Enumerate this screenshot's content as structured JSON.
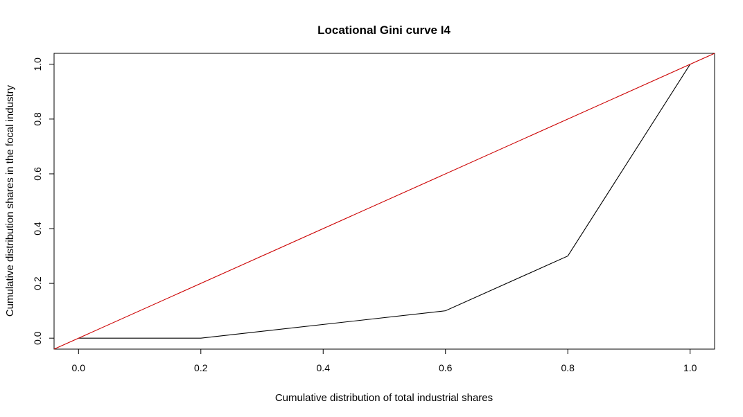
{
  "chart_data": {
    "type": "line",
    "title": "Locational Gini curve I4",
    "xlabel": "Cumulative distribution of total industrial shares",
    "ylabel": "Cumulative distribution shares in the focal industry",
    "xlim": [
      -0.04,
      1.04
    ],
    "ylim": [
      -0.04,
      1.04
    ],
    "x_ticks": [
      0.0,
      0.2,
      0.4,
      0.6,
      0.8,
      1.0
    ],
    "x_tick_labels": [
      "0.0",
      "0.2",
      "0.4",
      "0.6",
      "0.8",
      "1.0"
    ],
    "y_ticks": [
      0.0,
      0.2,
      0.4,
      0.6,
      0.8,
      1.0
    ],
    "y_tick_labels": [
      "0.0",
      "0.2",
      "0.4",
      "0.6",
      "0.8",
      "1.0"
    ],
    "grid": false,
    "legend": "none",
    "series": [
      {
        "color": "#000000",
        "x": [
          0.0,
          0.2,
          0.6,
          0.8,
          1.0
        ],
        "y": [
          0.0,
          0.0,
          0.1,
          0.3,
          1.0
        ]
      },
      {
        "color": "#cc0000",
        "x": [
          -0.04,
          1.04
        ],
        "y": [
          -0.04,
          1.04
        ]
      }
    ]
  }
}
